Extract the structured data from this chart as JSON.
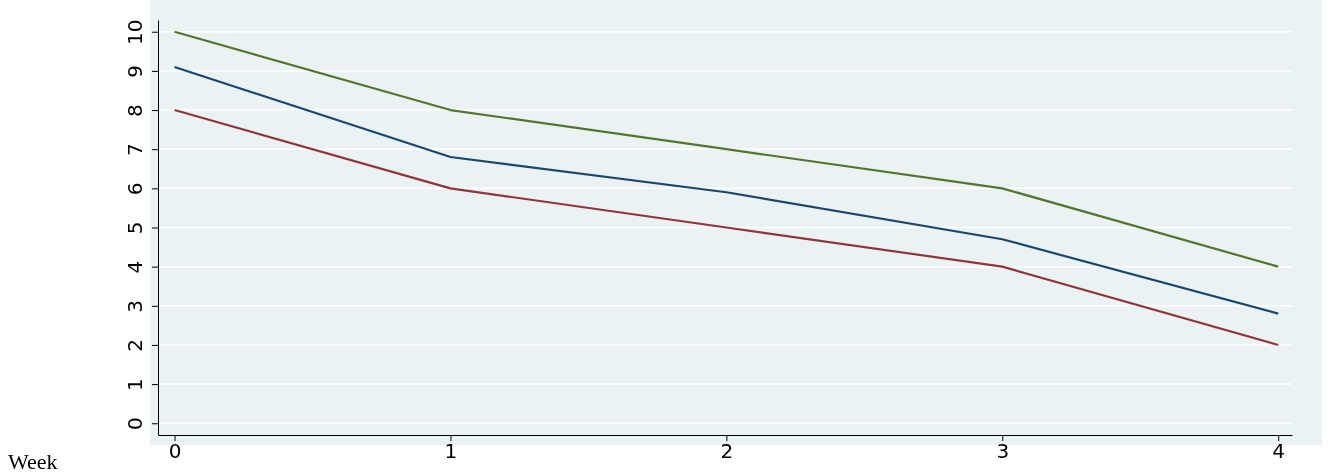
{
  "chart_data": {
    "type": "line",
    "xlabel": "Week",
    "x": [
      0,
      1,
      2,
      3,
      4
    ],
    "series": [
      {
        "color": "#55752f",
        "values": [
          10,
          8,
          7,
          6,
          4
        ]
      },
      {
        "color": "#1a476f",
        "values": [
          9.1,
          6.8,
          5.9,
          4.7,
          2.8
        ]
      },
      {
        "color": "#90353b",
        "values": [
          8,
          6,
          5,
          4,
          2
        ]
      }
    ],
    "xlim": [
      -0.06,
      4.05
    ],
    "xticks": [
      0,
      1,
      2,
      3,
      4
    ],
    "ylim": [
      -0.3,
      10.3
    ],
    "yticks": [
      0,
      1,
      2,
      3,
      4,
      5,
      6,
      7,
      8,
      9,
      10
    ],
    "grid": "y",
    "marker": "none",
    "line_style": "solid"
  }
}
